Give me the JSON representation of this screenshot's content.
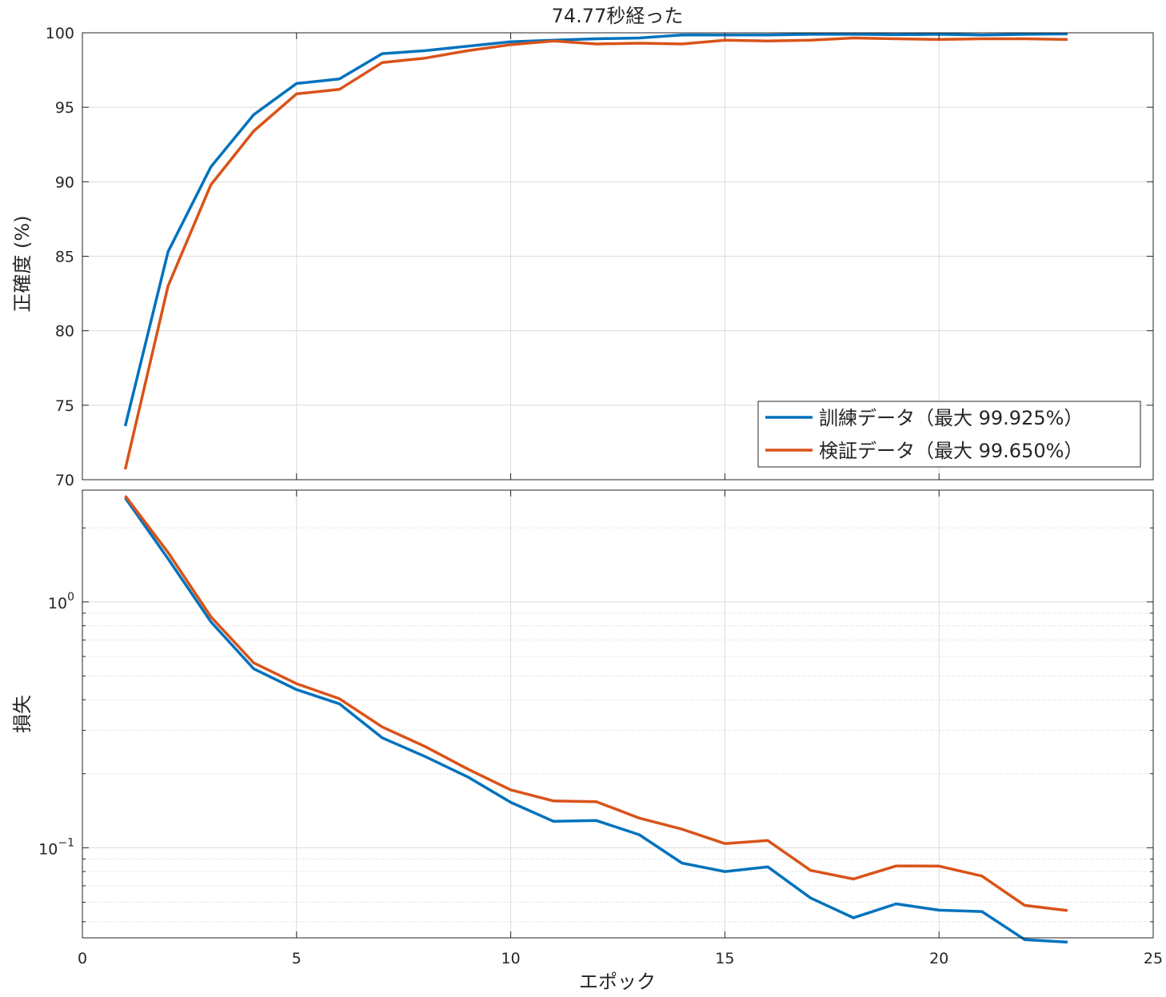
{
  "title": "74.77秒経った",
  "colors": {
    "train": "#0072BD",
    "validation": "#D95319",
    "grid": "#dcdcdc",
    "axis": "#262626"
  },
  "chart_data": [
    {
      "type": "line",
      "ylabel": "正確度 (%)",
      "xlim": [
        0,
        25
      ],
      "ylim": [
        70,
        100
      ],
      "xticks": [
        0,
        5,
        10,
        15,
        20,
        25
      ],
      "yticks": [
        70,
        75,
        80,
        85,
        90,
        95,
        100
      ],
      "grid": true,
      "legend_position": "bottom-right",
      "x": [
        1,
        2,
        3,
        4,
        5,
        6,
        7,
        8,
        9,
        10,
        11,
        12,
        13,
        14,
        15,
        16,
        17,
        18,
        19,
        20,
        21,
        22,
        23
      ],
      "series": [
        {
          "name": "訓練データ（最大 99.925%）",
          "values": [
            73.6,
            85.3,
            91.0,
            94.5,
            96.6,
            96.9,
            98.6,
            98.8,
            99.1,
            99.4,
            99.5,
            99.6,
            99.65,
            99.85,
            99.85,
            99.85,
            99.9,
            99.9,
            99.87,
            99.9,
            99.85,
            99.9,
            99.925
          ]
        },
        {
          "name": "検証データ（最大 99.650%）",
          "values": [
            70.7,
            83.0,
            89.8,
            93.4,
            95.9,
            96.2,
            98.0,
            98.3,
            98.8,
            99.2,
            99.45,
            99.25,
            99.3,
            99.25,
            99.5,
            99.45,
            99.5,
            99.65,
            99.6,
            99.55,
            99.6,
            99.6,
            99.55
          ]
        }
      ]
    },
    {
      "type": "line",
      "ylabel": "損失",
      "xlabel": "エポック",
      "xlim": [
        0,
        25
      ],
      "ylim": [
        0.043,
        2.85
      ],
      "yscale": "log",
      "xticks": [
        0,
        5,
        10,
        15,
        20,
        25
      ],
      "yticks": [
        {
          "value": 1,
          "base": "10",
          "exp": "0"
        },
        {
          "value": 0.1,
          "base": "10",
          "exp": "−1"
        }
      ],
      "grid": true,
      "x": [
        1,
        2,
        3,
        4,
        5,
        6,
        7,
        8,
        9,
        10,
        11,
        12,
        13,
        14,
        15,
        16,
        17,
        18,
        19,
        20,
        21,
        22,
        23
      ],
      "series": [
        {
          "name": "訓練データ",
          "values": [
            2.65,
            1.5,
            0.83,
            0.535,
            0.44,
            0.385,
            0.28,
            0.235,
            0.194,
            0.153,
            0.128,
            0.129,
            0.113,
            0.0866,
            0.08,
            0.0836,
            0.0625,
            0.0519,
            0.0591,
            0.0557,
            0.055,
            0.0423,
            0.0413
          ]
        },
        {
          "name": "検証データ",
          "values": [
            2.7,
            1.59,
            0.87,
            0.565,
            0.465,
            0.404,
            0.31,
            0.258,
            0.209,
            0.172,
            0.155,
            0.154,
            0.132,
            0.119,
            0.104,
            0.107,
            0.0809,
            0.0746,
            0.0843,
            0.0842,
            0.0767,
            0.0583,
            0.0555
          ]
        }
      ]
    }
  ]
}
